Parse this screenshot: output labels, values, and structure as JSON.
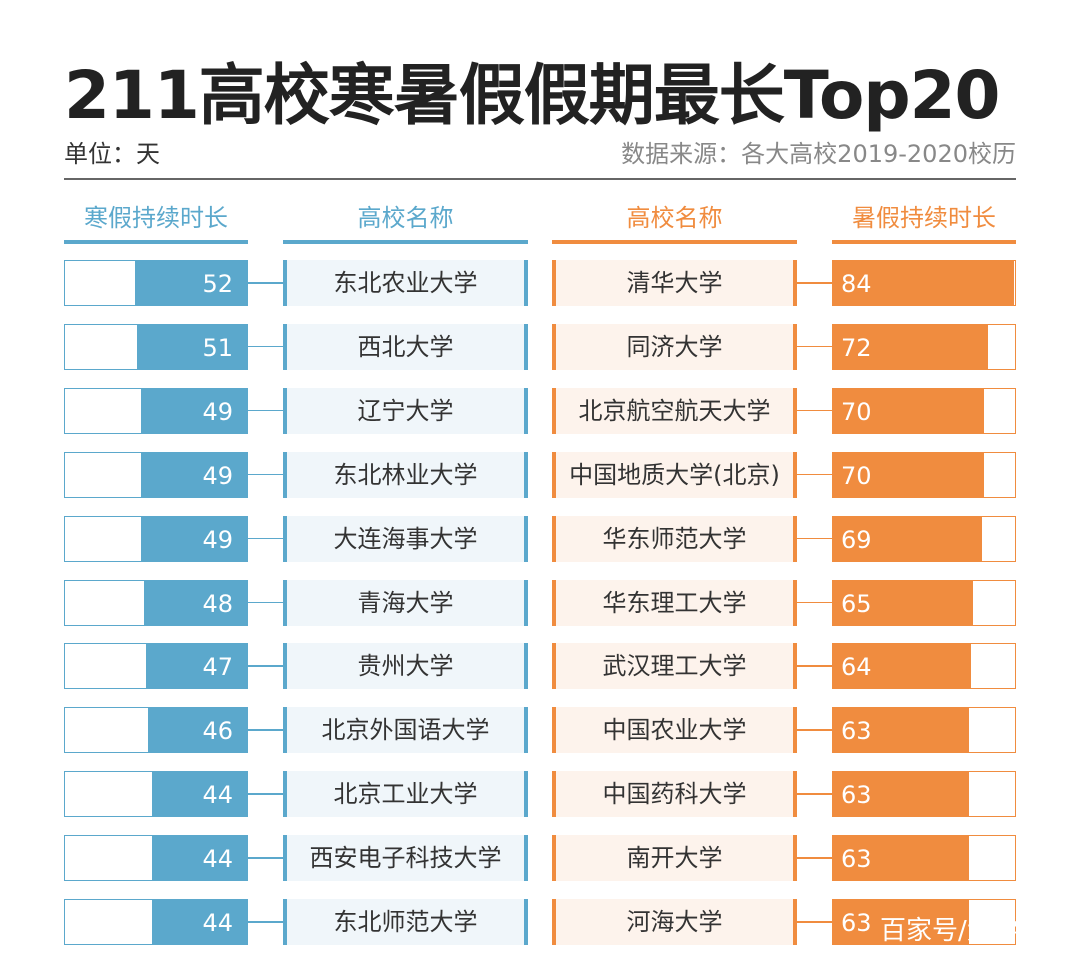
{
  "chart_data": {
    "type": "bar",
    "title": "211高校寒暑假假期最长Top20",
    "unit": "单位：天",
    "source": "数据来源：各大高校2019-2020校历",
    "headers": {
      "winter_value": "寒假持续时长",
      "winter_school": "高校名称",
      "summer_school": "高校名称",
      "summer_value": "暑假持续时长"
    },
    "xlim": [
      0,
      84
    ],
    "winter": [
      {
        "school": "东北农业大学",
        "value": 52
      },
      {
        "school": "西北大学",
        "value": 51
      },
      {
        "school": "辽宁大学",
        "value": 49
      },
      {
        "school": "东北林业大学",
        "value": 49
      },
      {
        "school": "大连海事大学",
        "value": 49
      },
      {
        "school": "青海大学",
        "value": 48
      },
      {
        "school": "贵州大学",
        "value": 47
      },
      {
        "school": "北京外国语大学",
        "value": 46
      },
      {
        "school": "北京工业大学",
        "value": 44
      },
      {
        "school": "西安电子科技大学",
        "value": 44
      },
      {
        "school": "东北师范大学",
        "value": 44
      }
    ],
    "summer": [
      {
        "school": "清华大学",
        "value": 84
      },
      {
        "school": "同济大学",
        "value": 72
      },
      {
        "school": "北京航空航天大学",
        "value": 70
      },
      {
        "school": "中国地质大学(北京)",
        "value": 70
      },
      {
        "school": "华东师范大学",
        "value": 69
      },
      {
        "school": "华东理工大学",
        "value": 65
      },
      {
        "school": "武汉理工大学",
        "value": 64
      },
      {
        "school": "中国农业大学",
        "value": 63
      },
      {
        "school": "中国药科大学",
        "value": 63
      },
      {
        "school": "南开大学",
        "value": 63
      },
      {
        "school": "河海大学",
        "value": 63
      }
    ],
    "colors": {
      "winter": "#5ba8cc",
      "summer": "#f08c3f",
      "winter_bg": "#f0f6fa",
      "summer_bg": "#fdf3ec"
    }
  },
  "watermark": "百家号/大学"
}
